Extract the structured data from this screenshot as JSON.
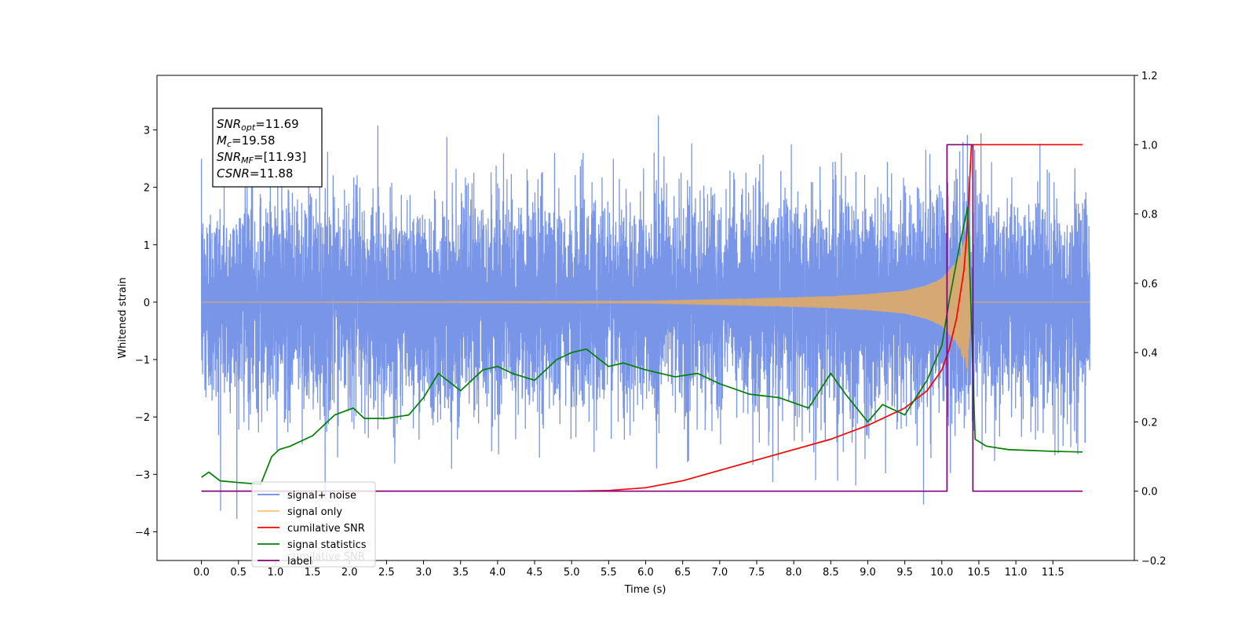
{
  "chart_data": {
    "type": "line",
    "xlabel": "Time (s)",
    "ylabel": "Whitened strain",
    "xlim": [
      -0.6,
      12.6
    ],
    "ylim_left": [
      -4.5,
      3.95
    ],
    "ylim_right": [
      -0.2,
      1.2
    ],
    "x_ticks": [
      0.0,
      0.5,
      1.0,
      1.5,
      2.0,
      2.5,
      3.0,
      3.5,
      4.0,
      4.5,
      5.0,
      5.5,
      6.0,
      6.5,
      7.0,
      7.5,
      8.0,
      8.5,
      9.0,
      9.5,
      10.0,
      10.5,
      11.0,
      11.5
    ],
    "x_tick_labels": [
      "0.0",
      "0.5",
      "1.0",
      "1.5",
      "2.0",
      "2.5",
      "3.0",
      "3.5",
      "4.0",
      "4.5",
      "5.0",
      "5.5",
      "6.0",
      "6.5",
      "7.0",
      "7.5",
      "8.0",
      "8.5",
      "9.0",
      "9.5",
      "10.0",
      "10.5",
      "11.0",
      "11.5"
    ],
    "y_left_ticks": [
      3,
      2,
      1,
      0,
      -1,
      -2,
      -3,
      -4
    ],
    "y_left_tick_labels": [
      "3",
      "2",
      "1",
      "0",
      "−1",
      "−2",
      "−3",
      "−4"
    ],
    "y_right_ticks": [
      1.2,
      1.0,
      0.8,
      0.6,
      0.4,
      0.2,
      0.0,
      -0.2
    ],
    "y_right_tick_labels": [
      "1.2",
      "1.0",
      "0.8",
      "0.6",
      "0.4",
      "0.2",
      "0.0",
      "−0.2"
    ],
    "grid": false,
    "legend_position": "lower-left",
    "series": [
      {
        "name": "signal+ noise",
        "axis": "left",
        "color": "#6a89e6",
        "kind": "noise-plus-chirp",
        "x_range": [
          0.0,
          12.0
        ],
        "noise_sigma": 0.9,
        "visible_range": [
          -3.92,
          3.6
        ]
      },
      {
        "name": "signal only",
        "axis": "left",
        "color": "#f5b04e",
        "kind": "chirp",
        "x_range": [
          0.0,
          12.0
        ],
        "merger_time": 10.4,
        "envelope_points": [
          [
            0.0,
            0.0
          ],
          [
            6.0,
            0.02
          ],
          [
            7.5,
            0.06
          ],
          [
            8.5,
            0.1
          ],
          [
            9.0,
            0.14
          ],
          [
            9.5,
            0.2
          ],
          [
            9.8,
            0.3
          ],
          [
            10.0,
            0.42
          ],
          [
            10.2,
            0.72
          ],
          [
            10.35,
            1.2
          ],
          [
            10.4,
            0.0
          ],
          [
            12.0,
            0.0
          ]
        ]
      },
      {
        "name": "cumilative SNR",
        "axis": "right",
        "color": "#ff0000",
        "x": [
          0.0,
          5.0,
          5.5,
          6.0,
          6.5,
          7.0,
          7.5,
          8.0,
          8.5,
          9.0,
          9.5,
          9.8,
          10.0,
          10.1,
          10.2,
          10.3,
          10.35,
          10.4,
          10.45,
          11.9
        ],
        "values": [
          0.0,
          0.0,
          0.002,
          0.01,
          0.03,
          0.06,
          0.09,
          0.12,
          0.15,
          0.19,
          0.24,
          0.29,
          0.35,
          0.41,
          0.5,
          0.64,
          0.78,
          1.0,
          1.0,
          1.0
        ]
      },
      {
        "name": "signal statistics",
        "axis": "right",
        "color": "#008000",
        "x": [
          0.0,
          0.1,
          0.25,
          0.5,
          0.8,
          0.95,
          1.05,
          1.2,
          1.5,
          1.8,
          2.05,
          2.2,
          2.5,
          2.8,
          3.0,
          3.2,
          3.5,
          3.8,
          4.0,
          4.2,
          4.5,
          4.8,
          5.0,
          5.2,
          5.5,
          5.7,
          6.0,
          6.4,
          6.7,
          7.0,
          7.4,
          7.8,
          8.2,
          8.5,
          8.7,
          9.0,
          9.2,
          9.5,
          9.8,
          10.0,
          10.1,
          10.25,
          10.35,
          10.45,
          10.6,
          10.9,
          11.5,
          11.9
        ],
        "values": [
          0.04,
          0.055,
          0.03,
          0.025,
          0.02,
          0.1,
          0.12,
          0.13,
          0.16,
          0.22,
          0.24,
          0.21,
          0.21,
          0.22,
          0.27,
          0.34,
          0.29,
          0.35,
          0.36,
          0.34,
          0.32,
          0.38,
          0.4,
          0.41,
          0.36,
          0.37,
          0.35,
          0.33,
          0.34,
          0.31,
          0.28,
          0.27,
          0.24,
          0.34,
          0.28,
          0.2,
          0.25,
          0.22,
          0.32,
          0.42,
          0.55,
          0.72,
          0.82,
          0.15,
          0.13,
          0.12,
          0.115,
          0.113
        ]
      },
      {
        "name": "label",
        "axis": "right",
        "color": "#800080",
        "x": [
          0.0,
          10.07,
          10.07,
          10.42,
          10.42,
          11.9
        ],
        "values": [
          0.0,
          0.0,
          1.0,
          1.0,
          0.0,
          0.0
        ]
      }
    ],
    "annotation": {
      "lines": [
        {
          "base": "SNR",
          "sub": "opt",
          "rest": "=11.69"
        },
        {
          "base": "M",
          "sub": "c",
          "rest": "=19.58"
        },
        {
          "base": "SNR",
          "sub": "MF",
          "rest": "=[11.93]"
        },
        {
          "base": "CSNR",
          "sub": "",
          "rest": "=11.88"
        }
      ]
    },
    "ghost_legend_text": "cumilative SNR"
  }
}
